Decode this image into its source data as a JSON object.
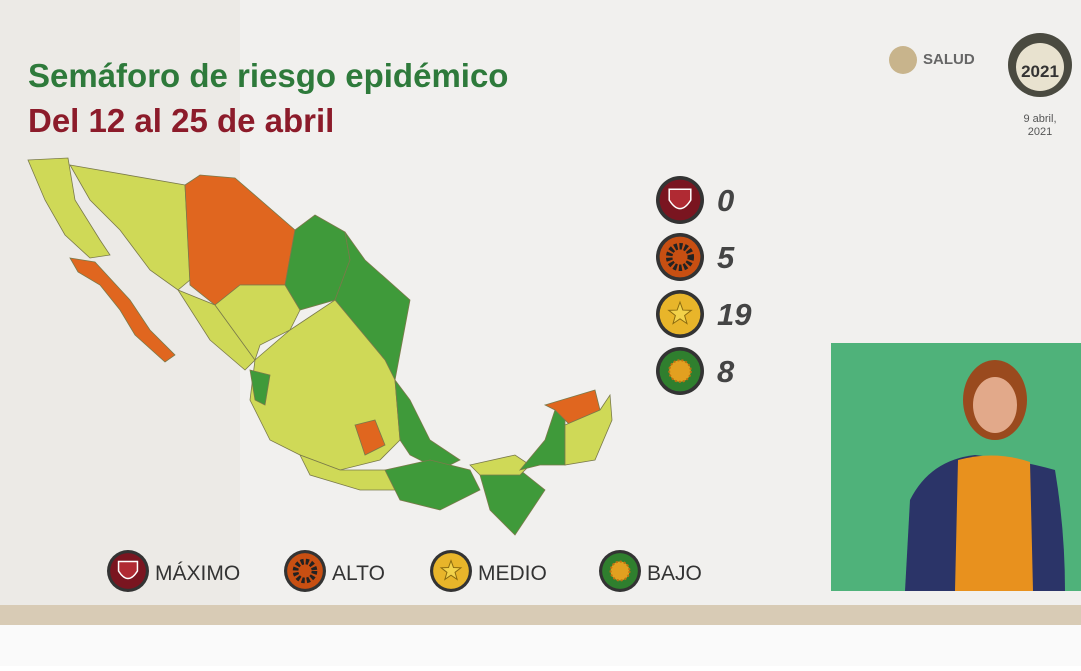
{
  "header": {
    "title": "Semáforo de riesgo epidémico",
    "subtitle": "Del 12 al 25 de abril",
    "logo": "SALUD",
    "logo_year": "2021",
    "date": "9 abril,\n2021"
  },
  "counts": [
    {
      "level": "maximo",
      "value": "0"
    },
    {
      "level": "alto",
      "value": "5"
    },
    {
      "level": "medio",
      "value": "19"
    },
    {
      "level": "bajo",
      "value": "8"
    }
  ],
  "legend": [
    "MÁXIMO",
    "ALTO",
    "MEDIO",
    "BAJO"
  ]
}
